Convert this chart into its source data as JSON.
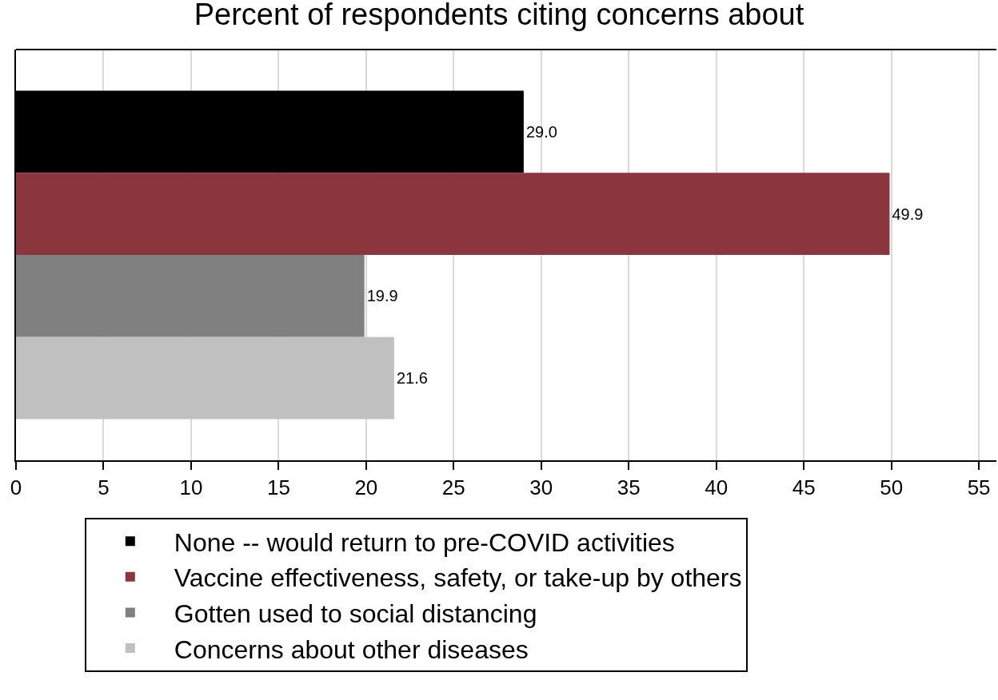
{
  "chart_data": {
    "type": "bar",
    "orientation": "horizontal",
    "title": "Percent of respondents citing concerns about",
    "categories": [
      null
    ],
    "series": [
      {
        "name": "None -- would return to pre-COVID activities",
        "color": "#000000",
        "values": [
          29.0
        ],
        "value_labels": [
          "29.0"
        ]
      },
      {
        "name": "Vaccine effectiveness, safety, or take-up by others",
        "color": "#8b353d",
        "values": [
          49.9
        ],
        "value_labels": [
          "49.9"
        ]
      },
      {
        "name": "Gotten used to social distancing",
        "color": "#808080",
        "values": [
          19.9
        ],
        "value_labels": [
          "19.9"
        ]
      },
      {
        "name": "Concerns about other diseases",
        "color": "#c0c0c0",
        "values": [
          21.6
        ],
        "value_labels": [
          "21.6"
        ]
      }
    ],
    "xlim": [
      0,
      56
    ],
    "xticks": [
      0,
      5,
      10,
      15,
      20,
      25,
      30,
      35,
      40,
      45,
      50,
      55
    ],
    "grid": "x",
    "legend": "bottom"
  }
}
